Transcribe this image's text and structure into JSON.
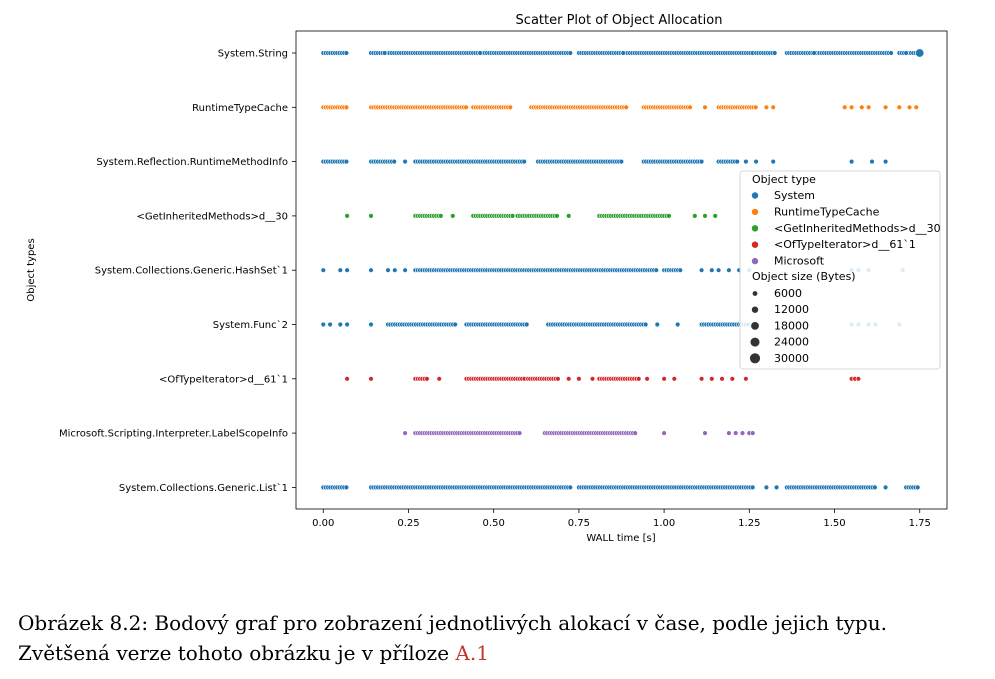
{
  "chart_data": {
    "type": "scatter",
    "title": "Scatter Plot of Object Allocation",
    "xlabel": "WALL time [s]",
    "ylabel": "Object types",
    "xlim": [
      -0.08,
      1.83
    ],
    "xticks": [
      "0.00",
      "0.25",
      "0.50",
      "0.75",
      "1.00",
      "1.25",
      "1.50",
      "1.75"
    ],
    "categories": [
      "System.String",
      "RuntimeTypeCache",
      "System.Reflection.RuntimeMethodInfo",
      "<GetInheritedMethods>d__30",
      "System.Collections.Generic.HashSet`1",
      "System.Func`2",
      "<OfTypeIterator>d__61`1",
      "Microsoft.Scripting.Interpreter.LabelScopeInfo",
      "System.Collections.Generic.List`1"
    ],
    "legend": {
      "position": "center-right",
      "hue_title": "Object type",
      "hue_items": [
        {
          "name": "System",
          "color": "#1f77b4"
        },
        {
          "name": "RuntimeTypeCache",
          "color": "#ff7f0e"
        },
        {
          "name": "<GetInheritedMethods>d__30",
          "color": "#2ca02c"
        },
        {
          "name": "<OfTypeIterator>d__61`1",
          "color": "#d62728"
        },
        {
          "name": "Microsoft",
          "color": "#9467bd"
        }
      ],
      "size_title": "Object size (Bytes)",
      "size_items": [
        "6000",
        "12000",
        "18000",
        "24000",
        "30000"
      ]
    },
    "series": [
      {
        "category": "System.String",
        "hue": "System",
        "ranges": [
          [
            0.0,
            0.07
          ],
          [
            0.14,
            0.73
          ],
          [
            0.75,
            1.26
          ],
          [
            1.27,
            1.33
          ],
          [
            1.36,
            1.67
          ],
          [
            1.69,
            1.75
          ]
        ],
        "points": [
          0.18,
          0.46,
          0.88,
          1.44,
          1.71
        ],
        "large_points": [
          1.75
        ]
      },
      {
        "category": "RuntimeTypeCache",
        "hue": "RuntimeTypeCache",
        "ranges": [
          [
            0.0,
            0.07
          ],
          [
            0.14,
            0.42
          ],
          [
            0.44,
            0.55
          ],
          [
            0.61,
            0.89
          ],
          [
            0.94,
            1.08
          ],
          [
            1.16,
            1.27
          ]
        ],
        "points": [
          1.12,
          1.3,
          1.32,
          1.53,
          1.55,
          1.58,
          1.6,
          1.65,
          1.69,
          1.72,
          1.74
        ],
        "large_points": []
      },
      {
        "category": "System.Reflection.RuntimeMethodInfo",
        "hue": "System",
        "ranges": [
          [
            0.0,
            0.07
          ],
          [
            0.14,
            0.21
          ],
          [
            0.27,
            0.59
          ],
          [
            0.63,
            0.88
          ],
          [
            0.94,
            1.11
          ],
          [
            1.16,
            1.22
          ]
        ],
        "points": [
          0.24,
          1.24,
          1.27,
          1.32,
          1.55,
          1.61,
          1.65
        ],
        "large_points": []
      },
      {
        "category": "<GetInheritedMethods>d__30",
        "hue": "<GetInheritedMethods>d__30",
        "ranges": [
          [
            0.27,
            0.35
          ],
          [
            0.44,
            0.56
          ],
          [
            0.57,
            0.69
          ],
          [
            0.81,
            1.02
          ]
        ],
        "points": [
          0.07,
          0.14,
          0.38,
          0.72,
          1.09,
          1.12,
          1.15
        ],
        "large_points": []
      },
      {
        "category": "System.Collections.Generic.HashSet`1",
        "hue": "System",
        "ranges": [
          [
            0.27,
            0.98
          ],
          [
            1.0,
            1.05
          ]
        ],
        "points": [
          0.0,
          0.05,
          0.07,
          0.14,
          0.19,
          0.21,
          0.24,
          1.11,
          1.14,
          1.16,
          1.19,
          1.22,
          1.25,
          1.55,
          1.57,
          1.6,
          1.7
        ],
        "large_points": []
      },
      {
        "category": "System.Func`2",
        "hue": "System",
        "ranges": [
          [
            0.19,
            0.39
          ],
          [
            0.42,
            0.6
          ],
          [
            0.66,
            0.95
          ],
          [
            1.11,
            1.25
          ]
        ],
        "points": [
          0.0,
          0.02,
          0.05,
          0.07,
          0.14,
          0.98,
          1.04,
          1.55,
          1.57,
          1.6,
          1.62,
          1.69
        ],
        "large_points": []
      },
      {
        "category": "<OfTypeIterator>d__61`1",
        "hue": "<OfTypeIterator>d__61`1",
        "ranges": [
          [
            0.27,
            0.31
          ],
          [
            0.42,
            0.59
          ],
          [
            0.6,
            0.69
          ],
          [
            0.81,
            0.93
          ]
        ],
        "points": [
          0.07,
          0.14,
          0.34,
          0.72,
          0.75,
          0.79,
          0.95,
          1.0,
          1.03,
          1.11,
          1.14,
          1.17,
          1.2,
          1.24,
          1.55,
          1.56,
          1.57
        ],
        "large_points": []
      },
      {
        "category": "Microsoft.Scripting.Interpreter.LabelScopeInfo",
        "hue": "Microsoft",
        "ranges": [
          [
            0.27,
            0.58
          ],
          [
            0.65,
            0.92
          ]
        ],
        "points": [
          0.24,
          1.0,
          1.12,
          1.19,
          1.21,
          1.23,
          1.25,
          1.26
        ],
        "large_points": []
      },
      {
        "category": "System.Collections.Generic.List`1",
        "hue": "System",
        "ranges": [
          [
            0.0,
            0.07
          ],
          [
            0.14,
            0.73
          ],
          [
            0.75,
            1.26
          ],
          [
            1.36,
            1.62
          ],
          [
            1.71,
            1.75
          ]
        ],
        "points": [
          1.3,
          1.33,
          1.65
        ],
        "large_points": []
      }
    ]
  },
  "caption": {
    "line1": "Obrázek 8.2: Bodový graf pro zobrazení jednotlivých alokací v čase, podle jejich typu.",
    "line2": "Zvětšená verze tohoto obrázku je v příloze",
    "ref": "A.1"
  }
}
